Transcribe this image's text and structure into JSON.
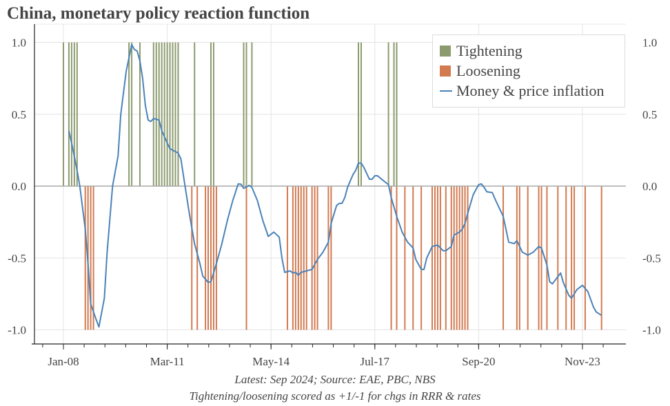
{
  "chart_data": {
    "type": "bar+line",
    "title": "China, monetary policy reaction function",
    "notes": [
      "Latest: Sep 2024; Source: EAE, PBC, NBS",
      "Tightening/loosening scored as +1/-1 for chgs in RRR & rates"
    ],
    "xlim": [
      "2007-08",
      "2024-11"
    ],
    "ylim": [
      -1.1,
      1.1
    ],
    "x_ticks": [
      {
        "date": "2008-01",
        "label": "Jan-08"
      },
      {
        "date": "2011-03",
        "label": "Mar-11"
      },
      {
        "date": "2014-05",
        "label": "May-14"
      },
      {
        "date": "2017-07",
        "label": "Jul-17"
      },
      {
        "date": "2020-09",
        "label": "Sep-20"
      },
      {
        "date": "2023-11",
        "label": "Nov-23"
      }
    ],
    "y_ticks": [
      {
        "value": 1.0,
        "label": "1.0"
      },
      {
        "value": 0.5,
        "label": "0.5"
      },
      {
        "value": 0.0,
        "label": "0.0"
      },
      {
        "value": -0.5,
        "label": "-0.5"
      },
      {
        "value": -1.0,
        "label": "-1.0"
      }
    ],
    "grid": true,
    "legend_position": "top-right",
    "series": [
      {
        "name": "Tightening",
        "kind": "bar",
        "color": "#8c9b6e",
        "value": 1,
        "dates": [
          "2008-01",
          "2008-03",
          "2008-04",
          "2008-05",
          "2008-06",
          "2010-01",
          "2010-02",
          "2010-05",
          "2010-10",
          "2010-11",
          "2010-12",
          "2011-01",
          "2011-02",
          "2011-03",
          "2011-04",
          "2011-05",
          "2011-06",
          "2011-07",
          "2012-01",
          "2012-07",
          "2012-08",
          "2013-07",
          "2013-08",
          "2013-10",
          "2017-01",
          "2017-02",
          "2017-12",
          "2018-02",
          "2018-03"
        ]
      },
      {
        "name": "Loosening",
        "kind": "bar",
        "color": "#d27a50",
        "value": -1,
        "dates": [
          "2008-09",
          "2008-10",
          "2008-11",
          "2008-12",
          "2011-12",
          "2012-02",
          "2012-05",
          "2012-06",
          "2012-07",
          "2012-08",
          "2012-09",
          "2013-08",
          "2014-11",
          "2015-01",
          "2015-02",
          "2015-03",
          "2015-04",
          "2015-05",
          "2015-06",
          "2015-08",
          "2015-09",
          "2015-10",
          "2016-02",
          "2016-03",
          "2018-01",
          "2018-03",
          "2018-06",
          "2018-09",
          "2018-12",
          "2019-04",
          "2019-05",
          "2019-06",
          "2019-07",
          "2019-09",
          "2019-11",
          "2019-12",
          "2020-01",
          "2020-02",
          "2020-03",
          "2020-04",
          "2020-05",
          "2021-06",
          "2021-11",
          "2021-12",
          "2022-03",
          "2022-07",
          "2022-08",
          "2022-10",
          "2023-02",
          "2023-05",
          "2023-07",
          "2023-08",
          "2023-12",
          "2024-06"
        ]
      },
      {
        "name": "Money & price inflation",
        "kind": "line",
        "color": "#4a82b8",
        "points": [
          [
            "2008-03",
            0.385
          ],
          [
            "2008-04",
            0.3
          ],
          [
            "2008-06",
            0.11
          ],
          [
            "2008-07",
            0.0
          ],
          [
            "2008-09",
            -0.3
          ],
          [
            "2008-10",
            -0.54
          ],
          [
            "2008-11",
            -0.82
          ],
          [
            "2009-01",
            -0.93
          ],
          [
            "2009-02",
            -0.98
          ],
          [
            "2009-04",
            -0.78
          ],
          [
            "2009-05",
            -0.46
          ],
          [
            "2009-07",
            0.0
          ],
          [
            "2009-09",
            0.21
          ],
          [
            "2009-10",
            0.5
          ],
          [
            "2009-12",
            0.8
          ],
          [
            "2010-02",
            0.985
          ],
          [
            "2010-03",
            0.95
          ],
          [
            "2010-04",
            0.94
          ],
          [
            "2010-05",
            0.87
          ],
          [
            "2010-06",
            0.75
          ],
          [
            "2010-07",
            0.56
          ],
          [
            "2010-08",
            0.46
          ],
          [
            "2010-09",
            0.45
          ],
          [
            "2010-10",
            0.47
          ],
          [
            "2010-12",
            0.46
          ],
          [
            "2011-01",
            0.385
          ],
          [
            "2011-03",
            0.3
          ],
          [
            "2011-04",
            0.26
          ],
          [
            "2011-07",
            0.23
          ],
          [
            "2011-08",
            0.19
          ],
          [
            "2011-09",
            0.064
          ],
          [
            "2011-11",
            -0.18
          ],
          [
            "2012-01",
            -0.4
          ],
          [
            "2012-03",
            -0.54
          ],
          [
            "2012-04",
            -0.625
          ],
          [
            "2012-06",
            -0.67
          ],
          [
            "2012-07",
            -0.665
          ],
          [
            "2012-09",
            -0.54
          ],
          [
            "2012-11",
            -0.4
          ],
          [
            "2013-01",
            -0.24
          ],
          [
            "2013-03",
            -0.1
          ],
          [
            "2013-05",
            0.016
          ],
          [
            "2013-06",
            0.013
          ],
          [
            "2013-07",
            -0.016
          ],
          [
            "2013-09",
            0.005
          ],
          [
            "2013-10",
            -0.008
          ],
          [
            "2013-12",
            -0.1
          ],
          [
            "2014-02",
            -0.24
          ],
          [
            "2014-04",
            -0.35
          ],
          [
            "2014-06",
            -0.32
          ],
          [
            "2014-08",
            -0.355
          ],
          [
            "2014-09",
            -0.5
          ],
          [
            "2014-10",
            -0.6
          ],
          [
            "2014-12",
            -0.59
          ],
          [
            "2015-01",
            -0.605
          ],
          [
            "2015-02",
            -0.6
          ],
          [
            "2015-03",
            -0.62
          ],
          [
            "2015-04",
            -0.6
          ],
          [
            "2015-06",
            -0.59
          ],
          [
            "2015-08",
            -0.58
          ],
          [
            "2015-10",
            -0.51
          ],
          [
            "2015-12",
            -0.46
          ],
          [
            "2016-02",
            -0.39
          ],
          [
            "2016-03",
            -0.26
          ],
          [
            "2016-05",
            -0.135
          ],
          [
            "2016-06",
            -0.12
          ],
          [
            "2016-07",
            -0.12
          ],
          [
            "2016-08",
            -0.08
          ],
          [
            "2016-09",
            -0.008
          ],
          [
            "2016-11",
            0.08
          ],
          [
            "2016-12",
            0.11
          ],
          [
            "2017-01",
            0.16
          ],
          [
            "2017-02",
            0.16
          ],
          [
            "2017-03",
            0.13
          ],
          [
            "2017-05",
            0.048
          ],
          [
            "2017-06",
            0.048
          ],
          [
            "2017-07",
            0.072
          ],
          [
            "2017-08",
            0.072
          ],
          [
            "2017-10",
            0.04
          ],
          [
            "2017-12",
            0.01
          ],
          [
            "2018-01",
            -0.08
          ],
          [
            "2018-03",
            -0.21
          ],
          [
            "2018-05",
            -0.32
          ],
          [
            "2018-07",
            -0.39
          ],
          [
            "2018-09",
            -0.43
          ],
          [
            "2018-10",
            -0.51
          ],
          [
            "2018-12",
            -0.58
          ],
          [
            "2019-01",
            -0.58
          ],
          [
            "2019-02",
            -0.5
          ],
          [
            "2019-04",
            -0.42
          ],
          [
            "2019-06",
            -0.41
          ],
          [
            "2019-08",
            -0.45
          ],
          [
            "2019-09",
            -0.45
          ],
          [
            "2019-11",
            -0.42
          ],
          [
            "2019-12",
            -0.34
          ],
          [
            "2020-02",
            -0.32
          ],
          [
            "2020-03",
            -0.3
          ],
          [
            "2020-04",
            -0.26
          ],
          [
            "2020-05",
            -0.19
          ],
          [
            "2020-07",
            -0.06
          ],
          [
            "2020-09",
            0.01
          ],
          [
            "2020-10",
            0.016
          ],
          [
            "2020-11",
            -0.008
          ],
          [
            "2020-12",
            -0.04
          ],
          [
            "2021-02",
            -0.045
          ],
          [
            "2021-03",
            -0.09
          ],
          [
            "2021-06",
            -0.21
          ],
          [
            "2021-08",
            -0.39
          ],
          [
            "2021-10",
            -0.4
          ],
          [
            "2021-11",
            -0.38
          ],
          [
            "2022-01",
            -0.46
          ],
          [
            "2022-03",
            -0.48
          ],
          [
            "2022-05",
            -0.46
          ],
          [
            "2022-07",
            -0.42
          ],
          [
            "2022-08",
            -0.43
          ],
          [
            "2022-10",
            -0.55
          ],
          [
            "2022-11",
            -0.665
          ],
          [
            "2022-12",
            -0.68
          ],
          [
            "2023-02",
            -0.63
          ],
          [
            "2023-03",
            -0.605
          ],
          [
            "2023-04",
            -0.67
          ],
          [
            "2023-06",
            -0.76
          ],
          [
            "2023-07",
            -0.78
          ],
          [
            "2023-09",
            -0.72
          ],
          [
            "2023-11",
            -0.69
          ],
          [
            "2024-01",
            -0.735
          ],
          [
            "2024-03",
            -0.84
          ],
          [
            "2024-04",
            -0.875
          ],
          [
            "2024-06",
            -0.9
          ]
        ]
      }
    ]
  }
}
